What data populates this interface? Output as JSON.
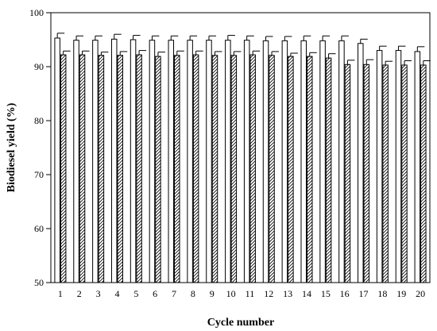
{
  "chart_data": {
    "type": "bar",
    "categories": [
      "1",
      "2",
      "3",
      "4",
      "5",
      "6",
      "7",
      "8",
      "9",
      "10",
      "11",
      "12",
      "13",
      "14",
      "15",
      "16",
      "17",
      "18",
      "19",
      "20"
    ],
    "series": [
      {
        "pattern": "open",
        "values": [
          95.3,
          94.9,
          94.9,
          95.1,
          95.0,
          94.9,
          94.9,
          94.9,
          94.9,
          94.9,
          94.9,
          94.8,
          94.8,
          94.8,
          94.8,
          94.8,
          94.3,
          93.0,
          93.0,
          92.8
        ],
        "errors": [
          0.9,
          0.8,
          0.8,
          0.9,
          0.8,
          0.8,
          0.8,
          0.8,
          0.8,
          0.9,
          0.8,
          0.8,
          0.8,
          0.9,
          0.9,
          0.9,
          0.8,
          0.8,
          0.8,
          0.9
        ]
      },
      {
        "pattern": "hatched",
        "values": [
          92.2,
          92.2,
          92.1,
          92.1,
          92.2,
          91.9,
          92.1,
          92.2,
          92.1,
          92.1,
          92.2,
          92.1,
          91.9,
          91.9,
          91.6,
          90.4,
          90.4,
          90.3,
          90.3,
          90.3
        ],
        "errors": [
          0.7,
          0.7,
          0.6,
          0.7,
          0.8,
          0.8,
          0.8,
          0.7,
          0.7,
          0.7,
          0.7,
          0.7,
          0.6,
          0.7,
          0.8,
          0.8,
          0.9,
          0.7,
          0.8,
          0.8
        ]
      }
    ],
    "xlabel": "Cycle number",
    "ylabel": "Biodiesel yield (%)",
    "ylim": [
      50,
      100
    ],
    "yticks": [
      50,
      60,
      70,
      80,
      90,
      100
    ],
    "grid": false,
    "legend": "none"
  }
}
